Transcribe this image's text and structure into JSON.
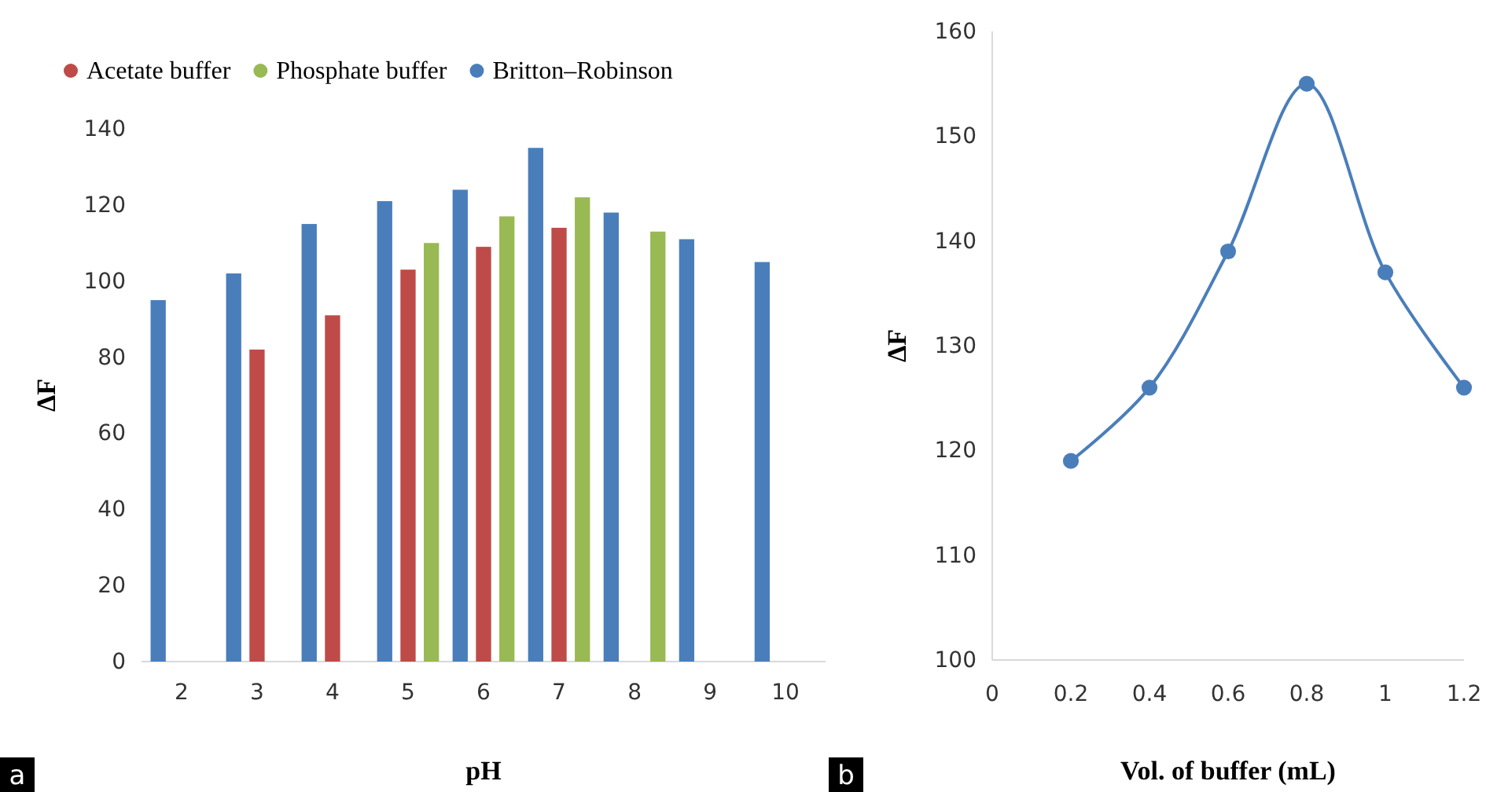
{
  "chart_data": [
    {
      "type": "bar",
      "xlabel": "pH",
      "ylabel": "ΔF",
      "categories": [
        "2",
        "3",
        "4",
        "5",
        "6",
        "7",
        "8",
        "9",
        "10"
      ],
      "series": [
        {
          "name": "Acetate buffer",
          "color": "#be4b48",
          "values": [
            null,
            82,
            91,
            103,
            109,
            114,
            null,
            null,
            null
          ]
        },
        {
          "name": "Phosphate buffer",
          "color": "#98b954",
          "values": [
            null,
            null,
            null,
            110,
            117,
            122,
            113,
            null,
            null
          ]
        },
        {
          "name": "Britton–Robinson",
          "color": "#4a7ebb",
          "values": [
            95,
            102,
            115,
            121,
            124,
            135,
            118,
            111,
            105
          ]
        }
      ],
      "ylim": [
        0,
        140
      ],
      "yticks": [
        0,
        20,
        40,
        60,
        80,
        100,
        120,
        140
      ],
      "legend": "top",
      "grid": false,
      "annotations": [
        "a"
      ]
    },
    {
      "type": "line",
      "xlabel": "Vol. of buffer (mL)",
      "ylabel": "ΔF",
      "x": [
        0.2,
        0.4,
        0.6,
        0.8,
        1,
        1.2
      ],
      "series": [
        {
          "color": "#4a7ebb",
          "values": [
            119,
            126,
            139,
            155,
            137,
            126
          ]
        }
      ],
      "xlim": [
        0,
        1.2
      ],
      "xticks": [
        0,
        0.2,
        0.4,
        0.6,
        0.8,
        1,
        1.2
      ],
      "ylim": [
        100,
        160
      ],
      "yticks": [
        100,
        110,
        120,
        130,
        140,
        150,
        160
      ],
      "marker": "circle",
      "grid": false,
      "annotations": [
        "b"
      ]
    }
  ]
}
